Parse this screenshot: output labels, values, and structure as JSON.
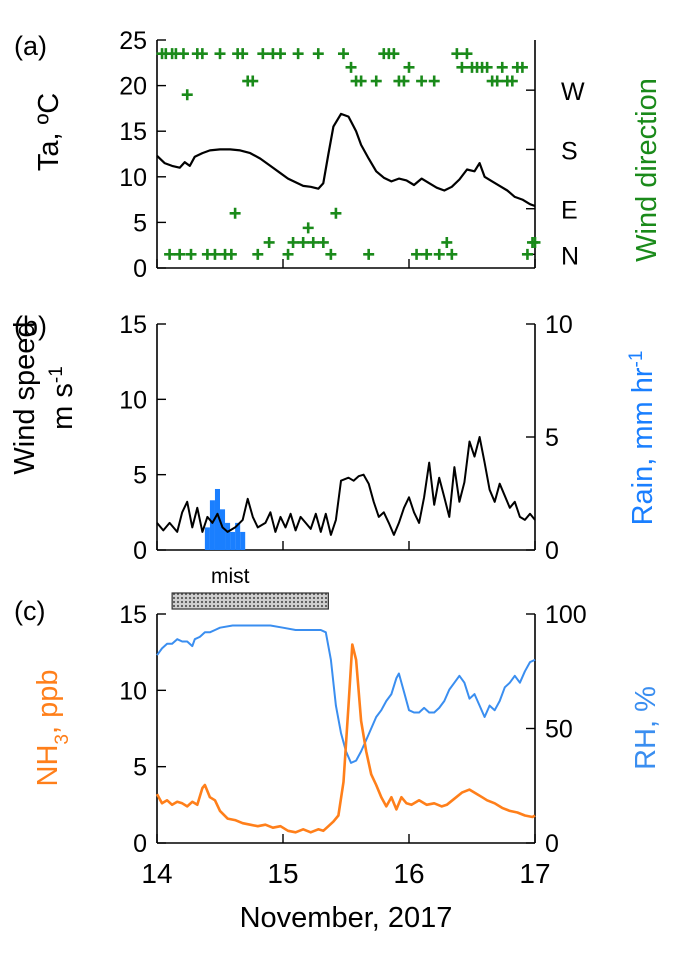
{
  "colors": {
    "temperature": "#000000",
    "wind_direction": "#1a8a1a",
    "wind_speed": "#000000",
    "rain": "#1a7fff",
    "nh3": "#ff7f1a",
    "rh": "#3a8ef0",
    "mist_bar": "#999999"
  },
  "chart_data": [
    {
      "panel_label": "(a)",
      "type": "line",
      "x_range": [
        14,
        17
      ],
      "left_axis": {
        "label": "Ta, ºC",
        "ylim": [
          0,
          25
        ],
        "ticks": [
          0,
          5,
          10,
          15,
          20,
          25
        ]
      },
      "right_axis": {
        "label": "Wind direction",
        "categories": [
          "N",
          "E",
          "S",
          "W"
        ],
        "category_levels": [
          1.5,
          6.5,
          13,
          19.5
        ]
      },
      "temperature": {
        "x": [
          14.0,
          14.06,
          14.12,
          14.18,
          14.22,
          14.26,
          14.3,
          14.36,
          14.42,
          14.5,
          14.58,
          14.66,
          14.74,
          14.82,
          14.9,
          14.98,
          15.04,
          15.1,
          15.16,
          15.22,
          15.28,
          15.32,
          15.36,
          15.4,
          15.46,
          15.52,
          15.58,
          15.62,
          15.68,
          15.74,
          15.8,
          15.86,
          15.92,
          15.98,
          16.04,
          16.1,
          16.16,
          16.22,
          16.28,
          16.34,
          16.4,
          16.46,
          16.52,
          16.56,
          16.6,
          16.66,
          16.72,
          16.78,
          16.84,
          16.9,
          16.96,
          17.0
        ],
        "y": [
          12.3,
          11.5,
          11.2,
          11.0,
          11.6,
          11.2,
          12.2,
          12.6,
          12.9,
          13.0,
          13.0,
          12.9,
          12.6,
          12.0,
          11.2,
          10.4,
          9.8,
          9.4,
          9.0,
          8.9,
          8.7,
          9.3,
          12.5,
          15.5,
          16.9,
          16.6,
          15.0,
          13.5,
          12.0,
          10.6,
          9.9,
          9.5,
          9.8,
          9.6,
          9.1,
          9.8,
          9.3,
          8.8,
          8.5,
          8.9,
          9.7,
          10.8,
          10.6,
          11.5,
          10.0,
          9.5,
          9.0,
          8.5,
          7.8,
          7.5,
          7.0,
          6.8
        ]
      },
      "wind_direction": {
        "x": [
          14.04,
          14.07,
          14.1,
          14.12,
          14.15,
          14.18,
          14.21,
          14.24,
          14.27,
          14.32,
          14.36,
          14.4,
          14.46,
          14.5,
          14.54,
          14.59,
          14.62,
          14.64,
          14.68,
          14.72,
          14.76,
          14.8,
          14.84,
          14.89,
          14.92,
          14.98,
          15.04,
          15.08,
          15.12,
          15.16,
          15.2,
          15.24,
          15.28,
          15.32,
          15.38,
          15.42,
          15.48,
          15.54,
          15.58,
          15.62,
          15.68,
          15.74,
          15.8,
          15.84,
          15.88,
          15.92,
          15.96,
          16.0,
          16.06,
          16.1,
          16.14,
          16.2,
          16.24,
          16.3,
          16.34,
          16.38,
          16.42,
          16.46,
          16.5,
          16.54,
          16.58,
          16.62,
          16.66,
          16.7,
          16.74,
          16.78,
          16.82,
          16.86,
          16.9,
          16.94,
          16.98,
          17.0
        ],
        "y": [
          23.5,
          23.5,
          1.5,
          23.5,
          23.5,
          1.5,
          23.5,
          19.0,
          1.5,
          23.5,
          23.5,
          1.5,
          1.5,
          23.5,
          1.5,
          1.5,
          6.0,
          23.5,
          23.5,
          20.5,
          20.5,
          1.5,
          23.5,
          2.8,
          23.5,
          23.5,
          1.5,
          2.8,
          23.5,
          2.8,
          4.4,
          2.8,
          23.5,
          2.8,
          1.5,
          6.0,
          23.5,
          22.0,
          20.5,
          20.5,
          1.5,
          20.5,
          23.5,
          23.5,
          23.5,
          20.5,
          20.5,
          22.0,
          1.5,
          20.5,
          1.5,
          20.5,
          1.5,
          2.8,
          1.5,
          23.5,
          22.0,
          23.5,
          22.0,
          22.0,
          22.0,
          22.0,
          20.5,
          20.5,
          22.0,
          20.5,
          20.5,
          22.0,
          22.0,
          1.5,
          2.8,
          2.8
        ]
      }
    },
    {
      "panel_label": "(b)",
      "type": "line",
      "x_range": [
        14,
        17
      ],
      "left_axis": {
        "label": "Wind speed m s-1",
        "ylim": [
          0,
          15
        ],
        "ticks": [
          0,
          5,
          10,
          15
        ]
      },
      "right_axis": {
        "label": "Rain, mm hr-1",
        "ylim": [
          0,
          10
        ],
        "ticks": [
          0,
          5,
          10
        ]
      },
      "wind_speed": {
        "x": [
          14.0,
          14.05,
          14.1,
          14.16,
          14.2,
          14.24,
          14.28,
          14.32,
          14.36,
          14.4,
          14.44,
          14.48,
          14.52,
          14.56,
          14.62,
          14.68,
          14.72,
          14.76,
          14.8,
          14.86,
          14.9,
          14.94,
          14.98,
          15.02,
          15.06,
          15.1,
          15.14,
          15.18,
          15.22,
          15.26,
          15.3,
          15.34,
          15.38,
          15.42,
          15.46,
          15.52,
          15.56,
          15.6,
          15.64,
          15.68,
          15.72,
          15.76,
          15.8,
          15.84,
          15.88,
          15.92,
          15.96,
          16.0,
          16.04,
          16.08,
          16.12,
          16.16,
          16.2,
          16.24,
          16.28,
          16.32,
          16.36,
          16.4,
          16.44,
          16.48,
          16.52,
          16.56,
          16.6,
          16.64,
          16.68,
          16.72,
          16.76,
          16.8,
          16.84,
          16.88,
          16.92,
          16.96,
          17.0
        ],
        "y": [
          1.8,
          1.3,
          1.8,
          1.2,
          2.5,
          3.2,
          1.5,
          2.8,
          1.2,
          2.2,
          1.8,
          2.4,
          1.5,
          1.2,
          1.5,
          2.0,
          3.4,
          2.2,
          1.5,
          1.8,
          2.5,
          1.2,
          2.2,
          1.5,
          2.4,
          1.3,
          2.2,
          1.8,
          1.4,
          2.4,
          1.2,
          2.4,
          1.0,
          2.0,
          4.6,
          4.8,
          4.6,
          4.9,
          5.0,
          4.4,
          3.2,
          2.2,
          2.5,
          1.8,
          1.0,
          1.8,
          2.8,
          3.5,
          2.5,
          1.8,
          3.5,
          5.8,
          3.0,
          4.8,
          3.5,
          2.2,
          5.5,
          3.2,
          4.5,
          7.2,
          6.2,
          7.5,
          5.8,
          4.0,
          3.2,
          4.4,
          3.6,
          2.8,
          3.2,
          2.2,
          2.0,
          2.4,
          2.0
        ]
      },
      "rain": {
        "x_start": [
          14.38,
          14.42,
          14.46,
          14.5,
          14.54,
          14.58,
          14.62,
          14.66
        ],
        "x_end": [
          14.42,
          14.46,
          14.5,
          14.54,
          14.58,
          14.62,
          14.66,
          14.7
        ],
        "values": [
          1.0,
          2.2,
          2.7,
          1.8,
          1.2,
          0.8,
          1.2,
          0.8
        ]
      },
      "annotation": {
        "label": "mist",
        "x_start": 14.12,
        "x_end": 15.36
      }
    },
    {
      "panel_label": "(c)",
      "type": "line",
      "x_range": [
        14,
        17
      ],
      "x_ticks": [
        "14",
        "15",
        "16",
        "17"
      ],
      "xlabel": "November, 2017",
      "left_axis": {
        "label": "NH3, ppb",
        "ylim": [
          0,
          15
        ],
        "ticks": [
          0,
          5,
          10,
          15
        ]
      },
      "right_axis": {
        "label": "RH, %",
        "ylim": [
          0,
          100
        ],
        "ticks": [
          0,
          50,
          100
        ]
      },
      "nh3": {
        "x": [
          14.0,
          14.04,
          14.08,
          14.12,
          14.16,
          14.2,
          14.24,
          14.28,
          14.32,
          14.36,
          14.38,
          14.42,
          14.46,
          14.5,
          14.56,
          14.62,
          14.68,
          14.74,
          14.8,
          14.86,
          14.92,
          14.98,
          15.04,
          15.1,
          15.16,
          15.22,
          15.28,
          15.32,
          15.36,
          15.4,
          15.44,
          15.48,
          15.52,
          15.55,
          15.58,
          15.62,
          15.66,
          15.7,
          15.74,
          15.78,
          15.82,
          15.86,
          15.9,
          15.94,
          15.98,
          16.02,
          16.08,
          16.14,
          16.2,
          16.26,
          16.3,
          16.36,
          16.42,
          16.48,
          16.54,
          16.58,
          16.62,
          16.68,
          16.74,
          16.8,
          16.86,
          16.92,
          16.98,
          17.0
        ],
        "y": [
          3.2,
          2.6,
          2.8,
          2.5,
          2.7,
          2.6,
          2.4,
          2.7,
          2.5,
          3.6,
          3.8,
          3.0,
          2.8,
          2.1,
          1.6,
          1.5,
          1.3,
          1.2,
          1.1,
          1.2,
          1.0,
          1.1,
          0.8,
          0.7,
          0.9,
          0.7,
          0.9,
          0.8,
          1.1,
          1.4,
          1.8,
          4.0,
          9.0,
          13.0,
          12.0,
          8.0,
          6.0,
          4.5,
          3.8,
          3.0,
          2.4,
          3.0,
          2.2,
          3.0,
          2.6,
          2.5,
          2.8,
          2.5,
          2.6,
          2.4,
          2.5,
          2.9,
          3.3,
          3.5,
          3.2,
          3.0,
          2.8,
          2.6,
          2.3,
          2.1,
          2.0,
          1.8,
          1.7,
          1.8
        ]
      },
      "rh": {
        "x": [
          14.0,
          14.04,
          14.08,
          14.12,
          14.16,
          14.2,
          14.24,
          14.28,
          14.3,
          14.34,
          14.38,
          14.42,
          14.46,
          14.5,
          14.6,
          14.7,
          14.8,
          14.9,
          15.0,
          15.1,
          15.2,
          15.3,
          15.34,
          15.38,
          15.42,
          15.46,
          15.5,
          15.54,
          15.58,
          15.62,
          15.66,
          15.7,
          15.74,
          15.78,
          15.82,
          15.86,
          15.9,
          15.92,
          15.96,
          16.0,
          16.04,
          16.08,
          16.12,
          16.16,
          16.2,
          16.24,
          16.28,
          16.32,
          16.36,
          16.4,
          16.44,
          16.48,
          16.52,
          16.56,
          16.6,
          16.64,
          16.68,
          16.72,
          16.76,
          16.8,
          16.84,
          16.88,
          16.92,
          16.96,
          17.0
        ],
        "y": [
          82,
          85,
          87,
          87,
          89,
          88,
          88,
          86,
          89,
          90,
          92,
          92,
          93,
          94,
          95,
          95,
          95,
          95,
          94,
          93,
          93,
          93,
          92,
          80,
          60,
          48,
          40,
          35,
          36,
          40,
          45,
          50,
          55,
          58,
          62,
          65,
          72,
          74,
          66,
          58,
          57,
          57,
          59,
          57,
          57,
          59,
          62,
          67,
          70,
          73,
          70,
          63,
          65,
          60,
          55,
          60,
          58,
          62,
          68,
          70,
          73,
          70,
          75,
          79,
          80
        ]
      }
    }
  ]
}
